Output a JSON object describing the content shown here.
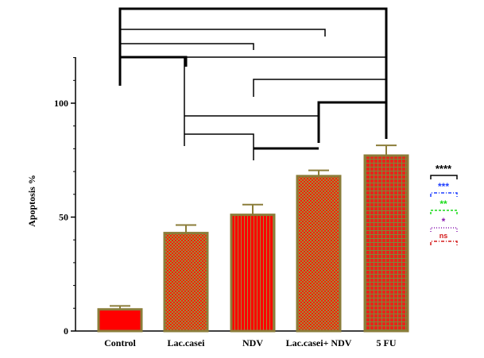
{
  "chart_data": {
    "type": "bar",
    "title": "",
    "xlabel": "",
    "ylabel": "Apoptosis %",
    "ylim": [
      0,
      120
    ],
    "yticks": [
      0,
      50,
      100
    ],
    "grid": false,
    "categories": [
      "Control",
      "Lac.casei",
      "NDV",
      "Lac.casei+ NDV",
      "5 FU"
    ],
    "values": [
      9.5,
      43,
      51,
      68,
      77
    ],
    "errors": [
      1.5,
      3.5,
      4.5,
      2.5,
      4.5
    ],
    "bar_fill_colors": [
      "#ff0000",
      "#ff2a14",
      "#ff0000",
      "#ff2a14",
      "#e8241a"
    ],
    "bar_border_color": "#8b7d3a",
    "significance_legend": [
      {
        "label": "****",
        "color": "#000000",
        "line_style": "solid"
      },
      {
        "label": "***",
        "color": "#1f3fff",
        "line_style": "dash-dot"
      },
      {
        "label": "**",
        "color": "#1adc1a",
        "line_style": "dashed"
      },
      {
        "label": "*",
        "color": "#8a1ab0",
        "line_style": "dotted"
      },
      {
        "label": "ns",
        "color": "#d41a1a",
        "line_style": "dash-dot"
      }
    ]
  }
}
